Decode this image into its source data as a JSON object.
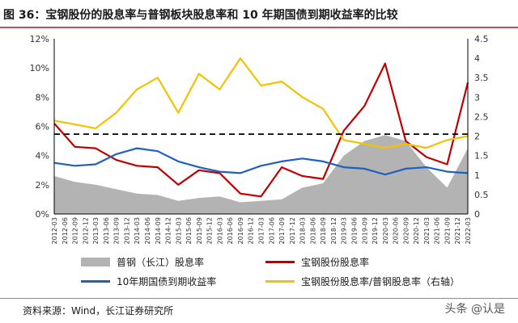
{
  "title": "图 36：宝钢股份的股息率与普钢板块股息率和 10 年期国债到期收益率的比较",
  "source": "资料来源：Wind，长江证券研究所",
  "watermark": "头条 @认是",
  "colors": {
    "area": "#b3b3b3",
    "red": "#c00000",
    "blue": "#1f5fbf",
    "yellow": "#f2c200",
    "ref": "#000000",
    "title_rule": "#c0504d"
  },
  "chart_data": {
    "type": "line",
    "x": [
      "2012-03",
      "2012-09",
      "2013-03",
      "2013-09",
      "2014-03",
      "2014-09",
      "2015-03",
      "2015-09",
      "2016-03",
      "2016-09",
      "2017-03",
      "2017-09",
      "2018-03",
      "2018-09",
      "2019-03",
      "2019-09",
      "2020-03",
      "2020-09",
      "2021-03",
      "2021-09",
      "2022-03"
    ],
    "x_tick_labels": [
      "2012-03",
      "2012-06",
      "2012-09",
      "2012-12",
      "2013-03",
      "2013-06",
      "2013-09",
      "2013-12",
      "2014-03",
      "2014-06",
      "2014-09",
      "2014-12",
      "2015-03",
      "2015-06",
      "2015-09",
      "2015-12",
      "2016-03",
      "2016-06",
      "2016-09",
      "2016-12",
      "2017-03",
      "2017-06",
      "2017-09",
      "2017-12",
      "2018-03",
      "2018-06",
      "2018-09",
      "2018-12",
      "2019-03",
      "2019-06",
      "2019-09",
      "2019-12",
      "2020-03",
      "2020-06",
      "2020-09",
      "2020-12",
      "2021-03",
      "2021-06",
      "2021-09",
      "2021-12",
      "2022-03"
    ],
    "y_left": {
      "min": 0,
      "max": 12,
      "ticks": [
        "0%",
        "2%",
        "4%",
        "6%",
        "8%",
        "10%",
        "12%"
      ]
    },
    "y_right": {
      "min": 0,
      "max": 4.5,
      "ticks": [
        "0",
        "0.5",
        "1",
        "1.5",
        "2",
        "2.5",
        "3",
        "3.5",
        "4",
        "4.5"
      ]
    },
    "reference_line": {
      "axis": "right",
      "value": 2.05,
      "style": "dashed"
    },
    "series": [
      {
        "name": "普钢（长江）股息率",
        "type": "area",
        "axis": "left",
        "color": "#b3b3b3",
        "values": [
          2.6,
          2.2,
          2.0,
          1.7,
          1.4,
          1.3,
          0.9,
          1.1,
          1.2,
          0.8,
          0.9,
          1.0,
          1.8,
          2.1,
          4.0,
          5.0,
          5.4,
          5.0,
          3.2,
          1.8,
          4.5
        ]
      },
      {
        "name": "宝钢股份股息率",
        "type": "line",
        "axis": "left",
        "color": "#c00000",
        "values": [
          6.2,
          4.6,
          4.5,
          3.7,
          3.3,
          3.2,
          2.0,
          3.0,
          2.8,
          1.4,
          1.2,
          3.2,
          2.6,
          2.4,
          5.7,
          7.4,
          10.3,
          5.0,
          3.9,
          3.4,
          9.0
        ]
      },
      {
        "name": "10年期国债到期收益率",
        "type": "line",
        "axis": "left",
        "color": "#1f5fbf",
        "values": [
          3.5,
          3.3,
          3.4,
          4.1,
          4.5,
          4.3,
          3.6,
          3.2,
          2.9,
          2.8,
          3.3,
          3.6,
          3.8,
          3.6,
          3.2,
          3.1,
          2.7,
          3.1,
          3.2,
          2.9,
          2.8
        ]
      },
      {
        "name": "宝钢股份股息率/普钢股息率（右轴）",
        "type": "line",
        "axis": "right",
        "color": "#f2c200",
        "values": [
          2.4,
          2.3,
          2.2,
          2.6,
          3.2,
          3.5,
          2.6,
          3.6,
          3.2,
          4.0,
          3.3,
          3.4,
          3.0,
          2.7,
          1.9,
          1.8,
          1.7,
          1.8,
          1.7,
          1.9,
          2.0
        ]
      }
    ],
    "legend": [
      {
        "label": "普钢（长江）股息率",
        "kind": "area",
        "color": "#b3b3b3"
      },
      {
        "label": "宝钢股份股息率",
        "kind": "line",
        "color": "#c00000"
      },
      {
        "label": "10年期国债到期收益率",
        "kind": "line",
        "color": "#1f5fbf"
      },
      {
        "label": "宝钢股份股息率/普钢股息率（右轴）",
        "kind": "line",
        "color": "#f2c200"
      }
    ]
  }
}
